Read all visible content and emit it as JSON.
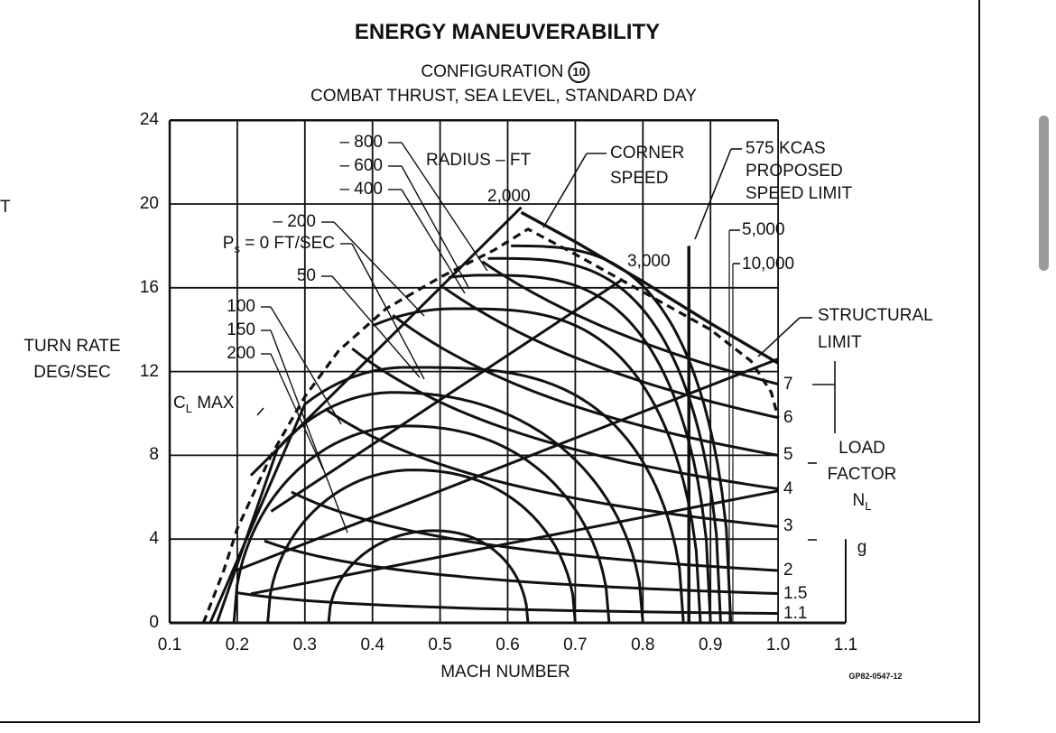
{
  "edge_text": "T",
  "chart_data": {
    "type": "line",
    "title": "ENERGY MANEUVERABILITY",
    "subtitle_prefix": "CONFIGURATION",
    "configuration_number": "10",
    "subtitle2": "COMBAT THRUST, SEA LEVEL, STANDARD DAY",
    "xlabel": "MACH NUMBER",
    "ylabel_lines": [
      "TURN RATE",
      "DEG/SEC"
    ],
    "xlim": [
      0.1,
      1.1
    ],
    "ylim": [
      0,
      24
    ],
    "x_ticks": [
      "0.1",
      "0.2",
      "0.3",
      "0.4",
      "0.5",
      "0.6",
      "0.7",
      "0.8",
      "0.9",
      "1.0",
      "1.1"
    ],
    "y_ticks": [
      "0",
      "4",
      "8",
      "12",
      "16",
      "20",
      "24"
    ],
    "grid": true,
    "figure_id": "GP82-0547-12",
    "ps_label_prefix": "P",
    "ps_label_sub": "s",
    "ps_label_suffix": " = 0 FT/SEC",
    "ps_curves": [
      {
        "label": "200",
        "ps": 200,
        "start_mach": 0.335,
        "peak_mach": 0.49,
        "peak_rate": 4.4,
        "end_mach": 0.63
      },
      {
        "label": "150",
        "ps": 150,
        "start_mach": 0.245,
        "peak_mach": 0.46,
        "peak_rate": 7.3,
        "end_mach": 0.7
      },
      {
        "label": "100",
        "ps": 100,
        "start_mach": 0.195,
        "peak_mach": 0.45,
        "peak_rate": 9.4,
        "end_mach": 0.75
      },
      {
        "label": "50",
        "ps": 50,
        "start_mach": 0.17,
        "peak_mach": 0.43,
        "peak_rate": 11.0,
        "end_mach": 0.8
      },
      {
        "label": "0",
        "ps": 0,
        "start_mach": 0.16,
        "peak_mach": 0.45,
        "peak_rate": 12.2,
        "end_mach": 0.86
      },
      {
        "label": "– 200",
        "ps": -200,
        "start_mach": 0.15,
        "peak_mach": 0.52,
        "peak_rate": 15.0,
        "end_mach": 0.885
      },
      {
        "label": "– 400",
        "ps": -400,
        "start_mach": 0.15,
        "peak_mach": 0.56,
        "peak_rate": 16.6,
        "end_mach": 0.9
      },
      {
        "label": "– 600",
        "ps": -600,
        "start_mach": 0.15,
        "peak_mach": 0.58,
        "peak_rate": 17.4,
        "end_mach": 0.915
      },
      {
        "label": "– 800",
        "ps": -800,
        "start_mach": 0.15,
        "peak_mach": 0.6,
        "peak_rate": 18.0,
        "end_mach": 0.93
      }
    ],
    "radius_title": "RADIUS – FT",
    "radius_lines": [
      {
        "label": "2,000",
        "radius_ft": 2000,
        "rate_per_mach": 32.0,
        "mach_range": [
          0.22,
          0.62
        ]
      },
      {
        "label": "3,000",
        "radius_ft": 3000,
        "rate_per_mach": 21.3,
        "mach_range": [
          0.25,
          0.77
        ]
      },
      {
        "label": "5,000",
        "radius_ft": 5000,
        "rate_per_mach": 12.6,
        "mach_range": [
          0.2,
          1.0
        ]
      },
      {
        "label": "10,000",
        "radius_ft": 10000,
        "rate_per_mach": 6.3,
        "mach_range": [
          0.22,
          1.0
        ]
      }
    ],
    "load_factor_title": [
      "LOAD",
      "FACTOR",
      "N",
      "L",
      "g"
    ],
    "load_factor_lines": [
      {
        "label": "7",
        "rate_at_mach_1": 11.4,
        "start_mach": 0.5
      },
      {
        "label": "6",
        "rate_at_mach_1": 9.8,
        "start_mach": 0.45
      },
      {
        "label": "5",
        "rate_at_mach_1": 8.0,
        "start_mach": 0.4
      },
      {
        "label": "4",
        "rate_at_mach_1": 6.4,
        "start_mach": 0.37
      },
      {
        "label": "3",
        "rate_at_mach_1": 4.6,
        "start_mach": 0.33
      },
      {
        "label": "2",
        "rate_at_mach_1": 2.5,
        "start_mach": 0.28
      },
      {
        "label": "1.5",
        "rate_at_mach_1": 1.4,
        "start_mach": 0.24
      },
      {
        "label": "1.1",
        "rate_at_mach_1": 0.45,
        "start_mach": 0.2
      }
    ],
    "cl_max": {
      "label": "C",
      "sub": "L",
      "suffix": " MAX",
      "points": [
        [
          0.15,
          0
        ],
        [
          0.18,
          2.5
        ],
        [
          0.2,
          4.5
        ],
        [
          0.25,
          8
        ],
        [
          0.3,
          10.8
        ],
        [
          0.35,
          13
        ],
        [
          0.42,
          15
        ],
        [
          0.5,
          16.5
        ],
        [
          0.58,
          17.8
        ],
        [
          0.63,
          18.8
        ],
        [
          0.7,
          17.6
        ],
        [
          0.8,
          15.8
        ],
        [
          0.9,
          14.0
        ],
        [
          0.96,
          12.5
        ],
        [
          0.99,
          11.0
        ],
        [
          1.0,
          9.8
        ]
      ]
    },
    "structural_limit": {
      "label": [
        "STRUCTURAL",
        "LIMIT"
      ],
      "points": [
        [
          0.62,
          19.6
        ],
        [
          0.7,
          18.2
        ],
        [
          0.8,
          16.3
        ],
        [
          0.9,
          14.3
        ],
        [
          1.0,
          12.4
        ]
      ]
    },
    "corner_speed": {
      "label": [
        "CORNER",
        "SPEED"
      ],
      "mach": 0.62,
      "rate": 19.6
    },
    "speed_limit": {
      "label": [
        "575 KCAS",
        "PROPOSED",
        "SPEED LIMIT"
      ],
      "mach": 0.868,
      "rate_top": 18.0
    }
  }
}
